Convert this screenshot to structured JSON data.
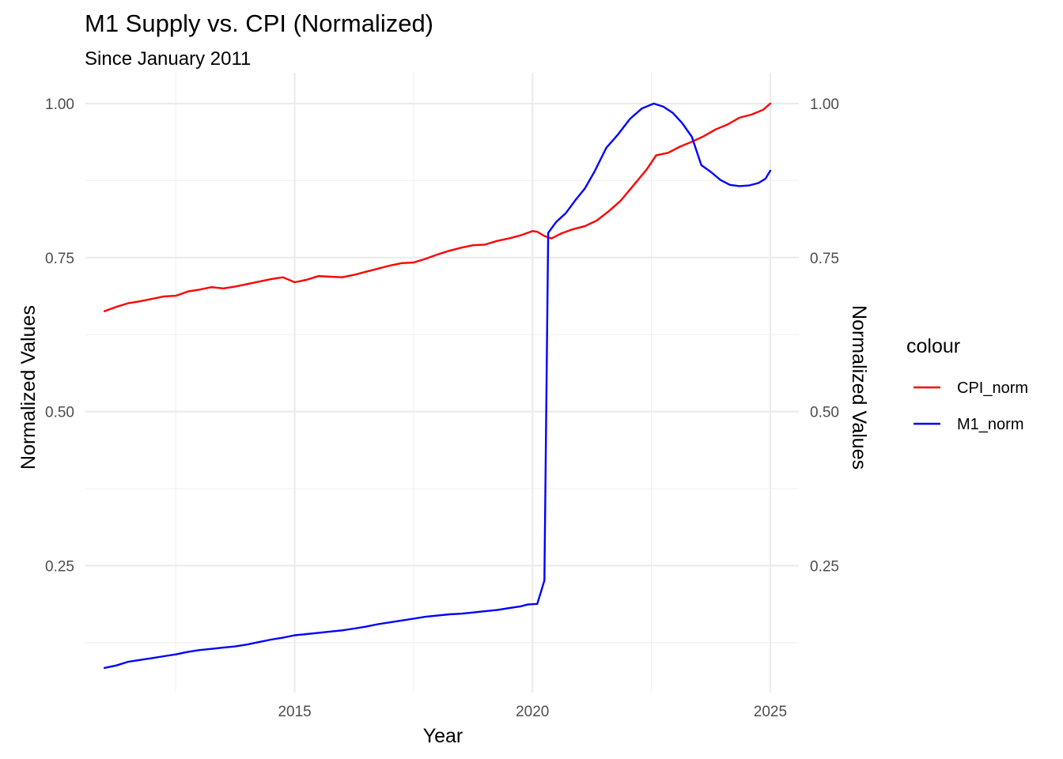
{
  "chart_data": {
    "type": "line",
    "title": "M1 Supply vs. CPI (Normalized)",
    "subtitle": "Since January 2011",
    "xlabel": "Year",
    "ylabel": "Normalized Values",
    "ylabel_right": "Normalized Values",
    "xlim": [
      2010.6,
      2025.6
    ],
    "ylim": [
      0.044,
      1.05
    ],
    "x_ticks": [
      2015,
      2020,
      2025
    ],
    "x_tick_labels": [
      "2015",
      "2020",
      "2025"
    ],
    "y_ticks": [
      0.25,
      0.5,
      0.75,
      1.0
    ],
    "y_tick_labels": [
      "0.25",
      "0.50",
      "0.75",
      "1.00"
    ],
    "grid": true,
    "legend": {
      "title": "colour",
      "placement": "right"
    },
    "series": [
      {
        "name": "CPI_norm",
        "color": "#ff0000",
        "points": [
          [
            2011.0,
            0.663
          ],
          [
            2011.25,
            0.67
          ],
          [
            2011.5,
            0.676
          ],
          [
            2011.75,
            0.679
          ],
          [
            2012.0,
            0.683
          ],
          [
            2012.25,
            0.687
          ],
          [
            2012.5,
            0.688
          ],
          [
            2012.75,
            0.695
          ],
          [
            2013.0,
            0.698
          ],
          [
            2013.25,
            0.702
          ],
          [
            2013.5,
            0.7
          ],
          [
            2013.75,
            0.703
          ],
          [
            2014.0,
            0.707
          ],
          [
            2014.25,
            0.711
          ],
          [
            2014.5,
            0.715
          ],
          [
            2014.75,
            0.718
          ],
          [
            2015.0,
            0.71
          ],
          [
            2015.25,
            0.714
          ],
          [
            2015.5,
            0.72
          ],
          [
            2015.75,
            0.719
          ],
          [
            2016.0,
            0.718
          ],
          [
            2016.25,
            0.722
          ],
          [
            2016.5,
            0.727
          ],
          [
            2016.75,
            0.732
          ],
          [
            2017.0,
            0.737
          ],
          [
            2017.25,
            0.741
          ],
          [
            2017.5,
            0.742
          ],
          [
            2017.75,
            0.748
          ],
          [
            2018.0,
            0.755
          ],
          [
            2018.25,
            0.761
          ],
          [
            2018.5,
            0.766
          ],
          [
            2018.75,
            0.77
          ],
          [
            2019.0,
            0.771
          ],
          [
            2019.25,
            0.777
          ],
          [
            2019.5,
            0.781
          ],
          [
            2019.75,
            0.786
          ],
          [
            2020.0,
            0.793
          ],
          [
            2020.1,
            0.792
          ],
          [
            2020.25,
            0.785
          ],
          [
            2020.4,
            0.781
          ],
          [
            2020.6,
            0.789
          ],
          [
            2020.85,
            0.796
          ],
          [
            2021.1,
            0.801
          ],
          [
            2021.35,
            0.81
          ],
          [
            2021.6,
            0.825
          ],
          [
            2021.85,
            0.842
          ],
          [
            2022.1,
            0.865
          ],
          [
            2022.4,
            0.893
          ],
          [
            2022.6,
            0.916
          ],
          [
            2022.85,
            0.92
          ],
          [
            2023.1,
            0.93
          ],
          [
            2023.35,
            0.938
          ],
          [
            2023.6,
            0.947
          ],
          [
            2023.85,
            0.958
          ],
          [
            2024.1,
            0.966
          ],
          [
            2024.35,
            0.977
          ],
          [
            2024.6,
            0.982
          ],
          [
            2024.85,
            0.99
          ],
          [
            2025.0,
            1.0
          ]
        ]
      },
      {
        "name": "M1_norm",
        "color": "#0000ff",
        "points": [
          [
            2011.0,
            0.084
          ],
          [
            2011.25,
            0.088
          ],
          [
            2011.5,
            0.094
          ],
          [
            2011.75,
            0.097
          ],
          [
            2012.0,
            0.1
          ],
          [
            2012.25,
            0.103
          ],
          [
            2012.5,
            0.106
          ],
          [
            2012.75,
            0.11
          ],
          [
            2013.0,
            0.113
          ],
          [
            2013.25,
            0.115
          ],
          [
            2013.5,
            0.117
          ],
          [
            2013.75,
            0.119
          ],
          [
            2014.0,
            0.122
          ],
          [
            2014.25,
            0.126
          ],
          [
            2014.5,
            0.13
          ],
          [
            2014.75,
            0.133
          ],
          [
            2015.0,
            0.137
          ],
          [
            2015.25,
            0.139
          ],
          [
            2015.5,
            0.141
          ],
          [
            2015.75,
            0.143
          ],
          [
            2016.0,
            0.145
          ],
          [
            2016.25,
            0.148
          ],
          [
            2016.5,
            0.151
          ],
          [
            2016.75,
            0.155
          ],
          [
            2017.0,
            0.158
          ],
          [
            2017.25,
            0.161
          ],
          [
            2017.5,
            0.164
          ],
          [
            2017.75,
            0.167
          ],
          [
            2018.0,
            0.169
          ],
          [
            2018.25,
            0.171
          ],
          [
            2018.5,
            0.172
          ],
          [
            2018.75,
            0.174
          ],
          [
            2019.0,
            0.176
          ],
          [
            2019.25,
            0.178
          ],
          [
            2019.5,
            0.181
          ],
          [
            2019.75,
            0.184
          ],
          [
            2019.9,
            0.187
          ],
          [
            2020.1,
            0.188
          ],
          [
            2020.25,
            0.226
          ],
          [
            2020.33,
            0.79
          ],
          [
            2020.5,
            0.808
          ],
          [
            2020.7,
            0.822
          ],
          [
            2020.9,
            0.843
          ],
          [
            2021.1,
            0.862
          ],
          [
            2021.3,
            0.889
          ],
          [
            2021.55,
            0.928
          ],
          [
            2021.8,
            0.95
          ],
          [
            2022.05,
            0.975
          ],
          [
            2022.3,
            0.992
          ],
          [
            2022.55,
            1.0
          ],
          [
            2022.75,
            0.995
          ],
          [
            2022.95,
            0.985
          ],
          [
            2023.15,
            0.968
          ],
          [
            2023.35,
            0.946
          ],
          [
            2023.55,
            0.9
          ],
          [
            2023.75,
            0.889
          ],
          [
            2023.95,
            0.876
          ],
          [
            2024.15,
            0.868
          ],
          [
            2024.35,
            0.866
          ],
          [
            2024.55,
            0.867
          ],
          [
            2024.75,
            0.871
          ],
          [
            2024.9,
            0.878
          ],
          [
            2025.0,
            0.891
          ]
        ]
      }
    ]
  }
}
